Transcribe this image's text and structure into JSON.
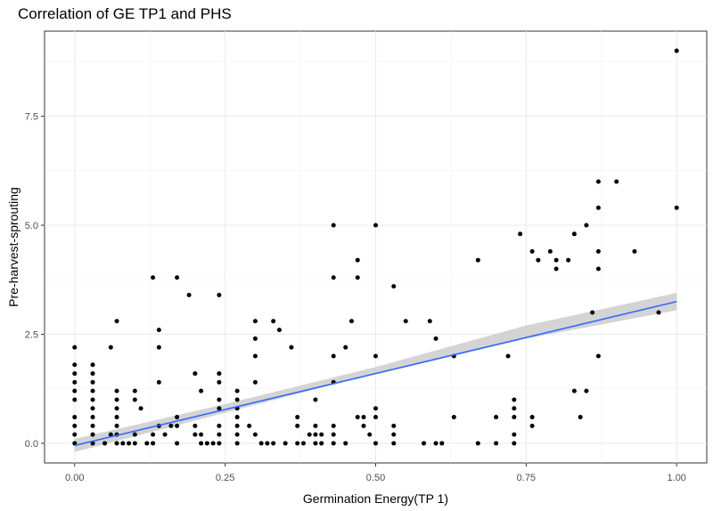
{
  "chart_data": {
    "type": "scatter",
    "title": "Correlation of GE TP1 and PHS",
    "xlabel": "Germination Energy(TP 1)",
    "ylabel": "Pre-harvest-sprouting",
    "xlim": [
      -0.05,
      1.05
    ],
    "ylim": [
      -0.45,
      9.45
    ],
    "x_ticks": [
      0.0,
      0.25,
      0.5,
      0.75,
      1.0
    ],
    "x_tick_labels": [
      "0.00",
      "0.25",
      "0.50",
      "0.75",
      "1.00"
    ],
    "y_ticks": [
      0.0,
      2.5,
      5.0,
      7.5
    ],
    "y_tick_labels": [
      "0.0",
      "2.5",
      "5.0",
      "7.5"
    ],
    "grid": true,
    "point_color": "#000000",
    "trend": {
      "color": "#3366FF",
      "band_color": "#cccccc",
      "x": [
        0.0,
        1.0
      ],
      "y": [
        -0.05,
        3.25
      ],
      "band_x": [
        0.0,
        0.25,
        0.5,
        0.75,
        1.0
      ],
      "band_lower": [
        -0.2,
        0.7,
        1.6,
        2.4,
        3.05
      ],
      "band_upper": [
        0.1,
        0.9,
        1.75,
        2.7,
        3.45
      ]
    },
    "points": [
      [
        0.0,
        0.0
      ],
      [
        0.0,
        0.2
      ],
      [
        0.0,
        0.4
      ],
      [
        0.0,
        0.6
      ],
      [
        0.0,
        1.0
      ],
      [
        0.0,
        1.2
      ],
      [
        0.0,
        1.4
      ],
      [
        0.0,
        1.6
      ],
      [
        0.0,
        1.8
      ],
      [
        0.0,
        2.2
      ],
      [
        0.03,
        0.0
      ],
      [
        0.03,
        0.2
      ],
      [
        0.03,
        0.4
      ],
      [
        0.03,
        0.6
      ],
      [
        0.03,
        0.8
      ],
      [
        0.03,
        1.0
      ],
      [
        0.03,
        1.2
      ],
      [
        0.03,
        1.4
      ],
      [
        0.03,
        1.6
      ],
      [
        0.03,
        1.8
      ],
      [
        0.05,
        0.0
      ],
      [
        0.06,
        0.2
      ],
      [
        0.06,
        2.2
      ],
      [
        0.07,
        0.0
      ],
      [
        0.07,
        0.2
      ],
      [
        0.07,
        0.4
      ],
      [
        0.07,
        0.6
      ],
      [
        0.07,
        0.8
      ],
      [
        0.07,
        1.0
      ],
      [
        0.07,
        1.2
      ],
      [
        0.07,
        2.8
      ],
      [
        0.08,
        0.0
      ],
      [
        0.09,
        0.0
      ],
      [
        0.1,
        0.0
      ],
      [
        0.1,
        0.2
      ],
      [
        0.1,
        1.0
      ],
      [
        0.1,
        1.2
      ],
      [
        0.11,
        0.8
      ],
      [
        0.12,
        0.0
      ],
      [
        0.13,
        0.0
      ],
      [
        0.13,
        0.2
      ],
      [
        0.13,
        3.8
      ],
      [
        0.14,
        0.4
      ],
      [
        0.14,
        1.4
      ],
      [
        0.14,
        2.2
      ],
      [
        0.14,
        2.6
      ],
      [
        0.15,
        0.2
      ],
      [
        0.16,
        0.4
      ],
      [
        0.17,
        0.0
      ],
      [
        0.17,
        0.4
      ],
      [
        0.17,
        0.6
      ],
      [
        0.17,
        3.8
      ],
      [
        0.19,
        3.4
      ],
      [
        0.2,
        0.2
      ],
      [
        0.2,
        0.4
      ],
      [
        0.2,
        1.6
      ],
      [
        0.21,
        0.0
      ],
      [
        0.21,
        0.2
      ],
      [
        0.21,
        1.2
      ],
      [
        0.22,
        0.0
      ],
      [
        0.23,
        0.0
      ],
      [
        0.24,
        0.0
      ],
      [
        0.24,
        0.2
      ],
      [
        0.24,
        0.4
      ],
      [
        0.24,
        0.8
      ],
      [
        0.24,
        1.0
      ],
      [
        0.24,
        1.4
      ],
      [
        0.24,
        1.6
      ],
      [
        0.24,
        3.4
      ],
      [
        0.27,
        0.0
      ],
      [
        0.27,
        0.2
      ],
      [
        0.27,
        0.4
      ],
      [
        0.27,
        0.6
      ],
      [
        0.27,
        0.8
      ],
      [
        0.27,
        1.0
      ],
      [
        0.27,
        1.2
      ],
      [
        0.29,
        0.4
      ],
      [
        0.3,
        0.2
      ],
      [
        0.3,
        1.4
      ],
      [
        0.3,
        2.0
      ],
      [
        0.3,
        2.4
      ],
      [
        0.3,
        2.8
      ],
      [
        0.31,
        0.0
      ],
      [
        0.32,
        0.0
      ],
      [
        0.33,
        2.8
      ],
      [
        0.33,
        0.0
      ],
      [
        0.34,
        2.6
      ],
      [
        0.35,
        0.0
      ],
      [
        0.36,
        2.2
      ],
      [
        0.37,
        0.0
      ],
      [
        0.37,
        0.4
      ],
      [
        0.37,
        0.6
      ],
      [
        0.38,
        0.0
      ],
      [
        0.39,
        0.2
      ],
      [
        0.4,
        0.0
      ],
      [
        0.4,
        0.2
      ],
      [
        0.4,
        0.4
      ],
      [
        0.4,
        1.0
      ],
      [
        0.41,
        0.0
      ],
      [
        0.41,
        0.2
      ],
      [
        0.43,
        0.0
      ],
      [
        0.43,
        0.2
      ],
      [
        0.43,
        0.4
      ],
      [
        0.43,
        1.4
      ],
      [
        0.43,
        2.0
      ],
      [
        0.43,
        3.8
      ],
      [
        0.43,
        5.0
      ],
      [
        0.45,
        0.0
      ],
      [
        0.45,
        2.2
      ],
      [
        0.46,
        2.8
      ],
      [
        0.47,
        0.6
      ],
      [
        0.47,
        3.8
      ],
      [
        0.47,
        4.2
      ],
      [
        0.48,
        0.4
      ],
      [
        0.48,
        0.6
      ],
      [
        0.49,
        0.2
      ],
      [
        0.5,
        0.0
      ],
      [
        0.5,
        0.6
      ],
      [
        0.5,
        0.8
      ],
      [
        0.5,
        2.0
      ],
      [
        0.5,
        5.0
      ],
      [
        0.53,
        0.0
      ],
      [
        0.53,
        0.2
      ],
      [
        0.53,
        0.4
      ],
      [
        0.53,
        3.6
      ],
      [
        0.55,
        2.8
      ],
      [
        0.58,
        0.0
      ],
      [
        0.59,
        2.8
      ],
      [
        0.6,
        2.4
      ],
      [
        0.6,
        0.0
      ],
      [
        0.61,
        0.0
      ],
      [
        0.63,
        0.6
      ],
      [
        0.63,
        2.0
      ],
      [
        0.67,
        0.0
      ],
      [
        0.67,
        4.2
      ],
      [
        0.7,
        0.0
      ],
      [
        0.7,
        0.6
      ],
      [
        0.72,
        2.0
      ],
      [
        0.73,
        0.0
      ],
      [
        0.73,
        0.2
      ],
      [
        0.73,
        0.6
      ],
      [
        0.73,
        0.8
      ],
      [
        0.73,
        1.0
      ],
      [
        0.74,
        4.8
      ],
      [
        0.76,
        0.4
      ],
      [
        0.76,
        0.6
      ],
      [
        0.76,
        4.4
      ],
      [
        0.77,
        4.2
      ],
      [
        0.79,
        4.4
      ],
      [
        0.8,
        4.0
      ],
      [
        0.8,
        4.2
      ],
      [
        0.82,
        4.2
      ],
      [
        0.83,
        1.2
      ],
      [
        0.83,
        4.8
      ],
      [
        0.84,
        0.6
      ],
      [
        0.85,
        1.2
      ],
      [
        0.85,
        5.0
      ],
      [
        0.86,
        3.0
      ],
      [
        0.87,
        4.0
      ],
      [
        0.87,
        4.4
      ],
      [
        0.87,
        5.4
      ],
      [
        0.87,
        6.0
      ],
      [
        0.87,
        2.0
      ],
      [
        0.9,
        6.0
      ],
      [
        0.93,
        4.4
      ],
      [
        0.97,
        3.0
      ],
      [
        1.0,
        5.4
      ],
      [
        1.0,
        9.0
      ]
    ]
  }
}
